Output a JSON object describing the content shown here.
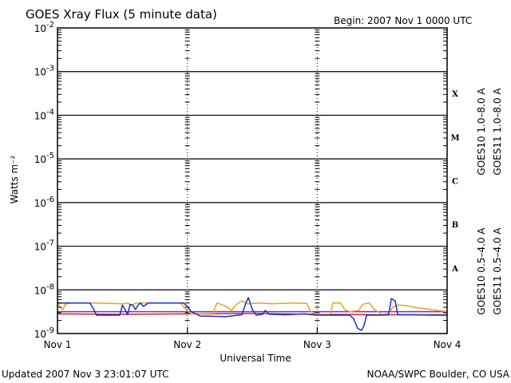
{
  "header": {
    "title": "GOES Xray Flux (5 minute data)",
    "begin_label": "Begin:  2007 Nov 1 0000 UTC"
  },
  "footer": {
    "updated": "Updated 2007 Nov  3 23:01:07 UTC",
    "credit": "NOAA/SWPC Boulder, CO USA"
  },
  "legend": [
    {
      "label": "GOES10 1.0–8.0 A",
      "color": "#7b2fb0"
    },
    {
      "label": "GOES11 1.0–8.0 A",
      "color": "#d4202a"
    },
    {
      "label": "GOES10 0.5–4.0 A",
      "color": "#f0a020"
    },
    {
      "label": "GOES11 0.5–4.0 A",
      "color": "#1a2fd0"
    }
  ],
  "chart_data": {
    "type": "line",
    "title": "GOES Xray Flux (5 minute data)",
    "xlabel": "Universal Time",
    "ylabel": "Watts m⁻²",
    "yscale": "log",
    "ylim": [
      1e-09,
      0.01
    ],
    "xlim": [
      0,
      3
    ],
    "x_ticks": [
      {
        "value": 0,
        "label": "Nov 1"
      },
      {
        "value": 1,
        "label": "Nov 2"
      },
      {
        "value": 2,
        "label": "Nov 3"
      },
      {
        "value": 3,
        "label": "Nov 4"
      }
    ],
    "y_ticks": [
      {
        "exp": -9,
        "base": "10",
        "sup": "-9"
      },
      {
        "exp": -8,
        "base": "10",
        "sup": "-8"
      },
      {
        "exp": -7,
        "base": "10",
        "sup": "-7"
      },
      {
        "exp": -6,
        "base": "10",
        "sup": "-6"
      },
      {
        "exp": -5,
        "base": "10",
        "sup": "-5"
      },
      {
        "exp": -4,
        "base": "10",
        "sup": "-4"
      },
      {
        "exp": -3,
        "base": "10",
        "sup": "-3"
      },
      {
        "exp": -2,
        "base": "10",
        "sup": "-2"
      }
    ],
    "flare_classes": [
      {
        "label": "X",
        "exp": -3.5
      },
      {
        "label": "M",
        "exp": -4.5
      },
      {
        "label": "C",
        "exp": -5.5
      },
      {
        "label": "B",
        "exp": -6.5
      },
      {
        "label": "A",
        "exp": -7.5
      }
    ],
    "grid_horizontal": [
      -8,
      -7,
      -6,
      -5,
      -4,
      -3
    ],
    "grid": true,
    "series": [
      {
        "name": "GOES10 1.0–8.0 A",
        "color": "#7b2fb0",
        "points": [
          [
            0,
            -8.5
          ],
          [
            3,
            -8.5
          ]
        ]
      },
      {
        "name": "GOES11 1.0–8.0 A",
        "color": "#d4202a",
        "points": [
          [
            0,
            -8.55
          ],
          [
            0.5,
            -8.56
          ],
          [
            1.0,
            -8.55
          ],
          [
            1.5,
            -8.54
          ],
          [
            2.0,
            -8.56
          ],
          [
            2.5,
            -8.57
          ],
          [
            3.0,
            -8.57
          ]
        ]
      },
      {
        "name": "GOES10 0.5–4.0 A",
        "color": "#f0a020",
        "points": [
          [
            0,
            -8.32
          ],
          [
            0.02,
            -8.38
          ],
          [
            0.04,
            -8.46
          ],
          [
            0.06,
            -8.33
          ],
          [
            0.1,
            -8.3
          ],
          [
            0.3,
            -8.3
          ],
          [
            0.5,
            -8.32
          ],
          [
            0.54,
            -8.3
          ],
          [
            0.57,
            -8.36
          ],
          [
            0.6,
            -8.31
          ],
          [
            0.66,
            -8.3
          ],
          [
            0.95,
            -8.3
          ],
          [
            0.98,
            -8.42
          ],
          [
            1.03,
            -8.55
          ],
          [
            1.2,
            -8.56
          ],
          [
            1.21,
            -8.42
          ],
          [
            1.23,
            -8.3
          ],
          [
            1.3,
            -8.38
          ],
          [
            1.34,
            -8.47
          ],
          [
            1.37,
            -8.35
          ],
          [
            1.42,
            -8.25
          ],
          [
            1.47,
            -8.32
          ],
          [
            1.55,
            -8.3
          ],
          [
            1.65,
            -8.32
          ],
          [
            1.8,
            -8.3
          ],
          [
            1.92,
            -8.31
          ],
          [
            1.95,
            -8.5
          ],
          [
            2.0,
            -8.56
          ],
          [
            2.1,
            -8.57
          ],
          [
            2.12,
            -8.3
          ],
          [
            2.18,
            -8.3
          ],
          [
            2.21,
            -8.45
          ],
          [
            2.25,
            -8.5
          ],
          [
            2.32,
            -8.47
          ],
          [
            2.35,
            -8.33
          ],
          [
            2.4,
            -8.3
          ],
          [
            2.44,
            -8.45
          ],
          [
            2.5,
            -8.56
          ],
          [
            2.55,
            -8.54
          ],
          [
            2.58,
            -8.4
          ],
          [
            2.62,
            -8.35
          ],
          [
            2.68,
            -8.36
          ],
          [
            2.75,
            -8.4
          ],
          [
            2.85,
            -8.44
          ],
          [
            2.95,
            -8.48
          ],
          [
            3.0,
            -8.5
          ]
        ]
      },
      {
        "name": "GOES11 0.5–4.0 A",
        "color": "#1a2fd0",
        "points": [
          [
            0,
            -8.3
          ],
          [
            0.25,
            -8.3
          ],
          [
            0.28,
            -8.45
          ],
          [
            0.3,
            -8.58
          ],
          [
            0.48,
            -8.58
          ],
          [
            0.5,
            -8.35
          ],
          [
            0.52,
            -8.45
          ],
          [
            0.54,
            -8.57
          ],
          [
            0.56,
            -8.33
          ],
          [
            0.58,
            -8.35
          ],
          [
            0.6,
            -8.45
          ],
          [
            0.62,
            -8.35
          ],
          [
            0.64,
            -8.3
          ],
          [
            0.66,
            -8.38
          ],
          [
            0.7,
            -8.3
          ],
          [
            0.97,
            -8.3
          ],
          [
            1.0,
            -8.38
          ],
          [
            1.03,
            -8.5
          ],
          [
            1.1,
            -8.6
          ],
          [
            1.3,
            -8.61
          ],
          [
            1.42,
            -8.57
          ],
          [
            1.45,
            -8.3
          ],
          [
            1.47,
            -8.18
          ],
          [
            1.5,
            -8.45
          ],
          [
            1.53,
            -8.58
          ],
          [
            1.58,
            -8.56
          ],
          [
            1.6,
            -8.47
          ],
          [
            1.63,
            -8.56
          ],
          [
            1.75,
            -8.57
          ],
          [
            1.9,
            -8.55
          ],
          [
            2.0,
            -8.58
          ],
          [
            2.25,
            -8.58
          ],
          [
            2.28,
            -8.66
          ],
          [
            2.31,
            -8.88
          ],
          [
            2.34,
            -8.93
          ],
          [
            2.36,
            -8.82
          ],
          [
            2.38,
            -8.58
          ],
          [
            2.5,
            -8.58
          ],
          [
            2.55,
            -8.57
          ],
          [
            2.57,
            -8.2
          ],
          [
            2.6,
            -8.25
          ],
          [
            2.62,
            -8.57
          ],
          [
            2.75,
            -8.57
          ],
          [
            2.9,
            -8.58
          ],
          [
            3.0,
            -8.58
          ]
        ]
      }
    ]
  }
}
